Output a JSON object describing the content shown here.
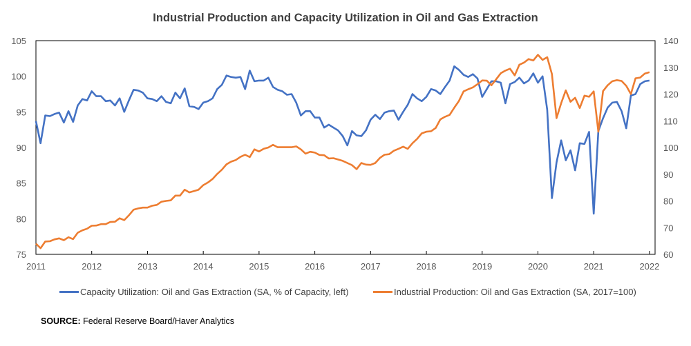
{
  "chart_data": {
    "type": "line",
    "title": "Industrial Production and Capacity Utilization in Oil and Gas Extraction",
    "x_start": "2011-01",
    "frequency": "monthly",
    "xlabel": "",
    "x_ticks": [
      "2011",
      "2012",
      "2013",
      "2014",
      "2015",
      "2016",
      "2017",
      "2018",
      "2019",
      "2020",
      "2021",
      "2022"
    ],
    "xlim": [
      2011,
      2022.1
    ],
    "y_left": {
      "label": "",
      "ylim": [
        75,
        105
      ],
      "ticks": [
        75,
        80,
        85,
        90,
        95,
        100,
        105
      ]
    },
    "y_right": {
      "label": "",
      "ylim": [
        60,
        140
      ],
      "ticks": [
        60,
        70,
        80,
        90,
        100,
        110,
        120,
        130,
        140
      ]
    },
    "grid": false,
    "legend_position": "bottom",
    "series": [
      {
        "name": "Capacity Utilization: Oil and Gas Extraction (SA, % of Capacity, left)",
        "axis": "left",
        "color": "#4472C4",
        "values": [
          93.7,
          90.6,
          94.5,
          94.4,
          94.7,
          94.9,
          93.5,
          95.1,
          93.6,
          95.9,
          96.8,
          96.6,
          97.9,
          97.2,
          97.2,
          96.5,
          96.6,
          95.9,
          96.9,
          95.0,
          96.6,
          98.1,
          98.0,
          97.7,
          96.9,
          96.8,
          96.5,
          97.2,
          96.4,
          96.2,
          97.7,
          96.9,
          98.3,
          95.8,
          95.7,
          95.4,
          96.3,
          96.5,
          96.9,
          98.2,
          98.8,
          100.1,
          99.9,
          99.8,
          99.9,
          98.2,
          100.8,
          99.3,
          99.4,
          99.4,
          99.8,
          98.5,
          98.1,
          97.9,
          97.4,
          97.5,
          96.3,
          94.5,
          95.1,
          95.1,
          94.2,
          94.2,
          92.8,
          93.2,
          92.8,
          92.4,
          91.6,
          90.3,
          92.3,
          91.7,
          91.6,
          92.4,
          93.9,
          94.6,
          94.0,
          94.9,
          95.1,
          95.2,
          93.9,
          95.0,
          96.0,
          97.5,
          96.9,
          96.5,
          97.1,
          98.2,
          98.0,
          97.5,
          98.5,
          99.4,
          101.4,
          100.9,
          100.2,
          99.9,
          100.3,
          99.7,
          97.1,
          98.2,
          99.3,
          99.3,
          99.1,
          96.2,
          98.9,
          99.2,
          99.8,
          99.0,
          99.4,
          100.4,
          99.1,
          100.0,
          95.3,
          82.9,
          87.9,
          91.0,
          88.2,
          89.6,
          86.8,
          90.6,
          90.5,
          92.2,
          80.7,
          92.3,
          94.1,
          95.6,
          96.3,
          96.4,
          95.1,
          92.7,
          97.3,
          97.5,
          98.9,
          99.3,
          99.4
        ]
      },
      {
        "name": "Industrial Production: Oil and Gas Extraction (SA, 2017=100)",
        "axis": "right",
        "color": "#ED7D31",
        "values": [
          64.0,
          62.3,
          64.8,
          64.9,
          65.6,
          66.0,
          65.3,
          66.4,
          65.7,
          68.1,
          69.0,
          69.6,
          70.7,
          70.8,
          71.3,
          71.3,
          72.1,
          72.2,
          73.5,
          72.8,
          74.6,
          76.7,
          77.2,
          77.5,
          77.5,
          78.2,
          78.5,
          79.7,
          80.0,
          80.2,
          82.0,
          82.0,
          84.2,
          83.2,
          83.7,
          84.2,
          85.9,
          86.9,
          88.2,
          90.1,
          91.7,
          93.7,
          94.7,
          95.3,
          96.5,
          97.3,
          96.4,
          99.3,
          98.5,
          99.5,
          100.0,
          101.0,
          100.1,
          100.1,
          100.1,
          100.1,
          100.4,
          99.3,
          97.7,
          98.4,
          98.1,
          97.2,
          97.1,
          95.9,
          96.0,
          95.5,
          95.0,
          94.2,
          93.4,
          91.9,
          94.2,
          93.6,
          93.5,
          94.2,
          96.1,
          97.3,
          97.5,
          98.8,
          99.5,
          100.3,
          99.5,
          101.6,
          103.2,
          105.3,
          105.9,
          106.1,
          107.3,
          110.5,
          111.5,
          112.2,
          114.9,
          117.4,
          121.0,
          121.8,
          122.5,
          123.7,
          125.1,
          125.0,
          123.3,
          125.5,
          127.8,
          128.8,
          129.5,
          127.0,
          131.0,
          131.8,
          133.1,
          132.6,
          134.7,
          132.8,
          133.8,
          127.5,
          111.0,
          116.6,
          121.4,
          117.1,
          118.6,
          114.8,
          119.4,
          119.0,
          121.0,
          105.9,
          121.1,
          123.3,
          124.8,
          125.2,
          124.9,
          123.1,
          120.0,
          125.9,
          126.2,
          127.7,
          128.2
        ]
      }
    ]
  },
  "legend": {
    "items": [
      {
        "label": "Capacity Utilization: Oil and Gas Extraction (SA, % of Capacity, left)",
        "color": "#4472C4"
      },
      {
        "label": "Industrial Production: Oil and Gas Extraction (SA, 2017=100)",
        "color": "#ED7D31"
      }
    ]
  },
  "source": {
    "label": "SOURCE:",
    "text": "Federal Reserve Board/Haver Analytics"
  }
}
